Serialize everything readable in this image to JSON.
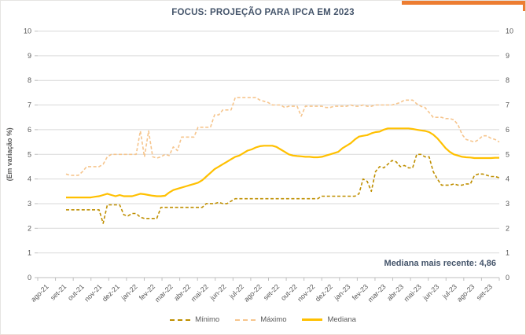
{
  "accent_color": "#ED7D31",
  "title_color": "#44546A",
  "axis_text_color": "#595959",
  "gridline_color": "#D9D9D9",
  "axis_line_color": "#BFBFBF",
  "chart_data": {
    "type": "line",
    "title": "FOCUS: PROJEÇÃO PARA IPCA EM 2023",
    "ylabel": "(Em variação %)",
    "ylim": [
      0,
      10
    ],
    "yticks": [
      0,
      1,
      2,
      3,
      4,
      5,
      6,
      7,
      8,
      9,
      10
    ],
    "grid": true,
    "legend_position": "bottom",
    "annotation": "Mediana mais recente: 4,86",
    "x_labels": [
      "ago-21",
      "set-21",
      "out-21",
      "nov-21",
      "dez-21",
      "jan-22",
      "fev-22",
      "mar-22",
      "abr-22",
      "mai-22",
      "jun-22",
      "jul-22",
      "ago-22",
      "set-22",
      "out-22",
      "nov-22",
      "dez-22",
      "jan-23",
      "fev-23",
      "mar-23",
      "abr-23",
      "mai-23",
      "jun-23",
      "jul-23",
      "ago-23",
      "set-23"
    ],
    "series": [
      {
        "name": "Mínimo",
        "color": "#BF8F00",
        "style": "dashed",
        "values": [
          2.75,
          2.75,
          2.75,
          2.75,
          2.75,
          2.75,
          2.75,
          2.75,
          2.75,
          2.2,
          2.95,
          2.95,
          2.95,
          2.95,
          2.55,
          2.5,
          2.6,
          2.6,
          2.45,
          2.4,
          2.4,
          2.4,
          2.4,
          2.85,
          2.85,
          2.85,
          2.85,
          2.85,
          2.85,
          2.85,
          2.85,
          2.85,
          2.85,
          2.85,
          3.0,
          3.0,
          3.0,
          3.05,
          3.0,
          3.0,
          3.1,
          3.2,
          3.2,
          3.2,
          3.2,
          3.2,
          3.2,
          3.2,
          3.2,
          3.2,
          3.2,
          3.2,
          3.2,
          3.2,
          3.2,
          3.2,
          3.2,
          3.2,
          3.2,
          3.2,
          3.2,
          3.2,
          3.3,
          3.3,
          3.3,
          3.3,
          3.3,
          3.3,
          3.3,
          3.3,
          3.3,
          3.4,
          4.0,
          3.9,
          3.5,
          4.3,
          4.5,
          4.45,
          4.6,
          4.75,
          4.7,
          4.5,
          4.55,
          4.45,
          4.45,
          5.0,
          5.0,
          4.9,
          4.9,
          4.3,
          4.0,
          3.75,
          3.75,
          3.75,
          3.8,
          3.75,
          3.75,
          3.8,
          3.8,
          4.15,
          4.2,
          4.2,
          4.15,
          4.1,
          4.1,
          4.05
        ]
      },
      {
        "name": "Máximo",
        "color": "#F6C58D",
        "style": "dashed",
        "values": [
          4.2,
          4.15,
          4.15,
          4.15,
          4.3,
          4.5,
          4.5,
          4.5,
          4.5,
          4.6,
          4.9,
          5.0,
          5.0,
          5.0,
          5.0,
          5.0,
          5.0,
          5.0,
          5.95,
          4.9,
          5.95,
          4.9,
          4.85,
          4.9,
          5.0,
          4.95,
          5.3,
          5.15,
          5.7,
          5.7,
          5.7,
          5.7,
          6.1,
          6.1,
          6.1,
          6.1,
          6.6,
          6.6,
          6.8,
          6.8,
          6.8,
          7.3,
          7.3,
          7.3,
          7.3,
          7.3,
          7.3,
          7.2,
          7.15,
          7.1,
          7.0,
          7.0,
          7.0,
          6.9,
          6.95,
          6.95,
          6.95,
          6.55,
          6.95,
          6.95,
          6.95,
          6.95,
          6.95,
          6.9,
          6.9,
          6.95,
          6.95,
          6.95,
          6.95,
          7.0,
          6.95,
          6.95,
          7.0,
          6.95,
          6.95,
          7.0,
          7.0,
          7.0,
          7.0,
          7.0,
          7.05,
          7.1,
          7.2,
          7.2,
          7.2,
          7.05,
          6.95,
          6.9,
          6.7,
          6.5,
          6.5,
          6.5,
          6.45,
          6.45,
          6.4,
          6.2,
          5.8,
          5.6,
          5.55,
          5.5,
          5.6,
          5.75,
          5.75,
          5.65,
          5.6,
          5.5
        ]
      },
      {
        "name": "Mediana",
        "color": "#FFC000",
        "style": "solid",
        "values": [
          3.25,
          3.25,
          3.25,
          3.25,
          3.25,
          3.25,
          3.25,
          3.28,
          3.3,
          3.35,
          3.4,
          3.35,
          3.3,
          3.35,
          3.3,
          3.3,
          3.3,
          3.35,
          3.4,
          3.38,
          3.35,
          3.32,
          3.3,
          3.3,
          3.32,
          3.45,
          3.55,
          3.6,
          3.65,
          3.7,
          3.75,
          3.8,
          3.85,
          3.95,
          4.1,
          4.25,
          4.4,
          4.5,
          4.6,
          4.7,
          4.8,
          4.9,
          4.95,
          5.05,
          5.15,
          5.2,
          5.28,
          5.33,
          5.35,
          5.35,
          5.35,
          5.3,
          5.2,
          5.1,
          5.0,
          4.95,
          4.93,
          4.92,
          4.9,
          4.9,
          4.88,
          4.88,
          4.9,
          4.95,
          5.0,
          5.05,
          5.1,
          5.25,
          5.35,
          5.45,
          5.6,
          5.72,
          5.75,
          5.78,
          5.85,
          5.9,
          5.92,
          6.0,
          6.05,
          6.05,
          6.05,
          6.05,
          6.05,
          6.05,
          6.03,
          6.0,
          5.97,
          5.95,
          5.9,
          5.8,
          5.65,
          5.45,
          5.25,
          5.1,
          5.0,
          4.95,
          4.9,
          4.88,
          4.87,
          4.85,
          4.85,
          4.85,
          4.85,
          4.85,
          4.86,
          4.86
        ]
      }
    ]
  }
}
